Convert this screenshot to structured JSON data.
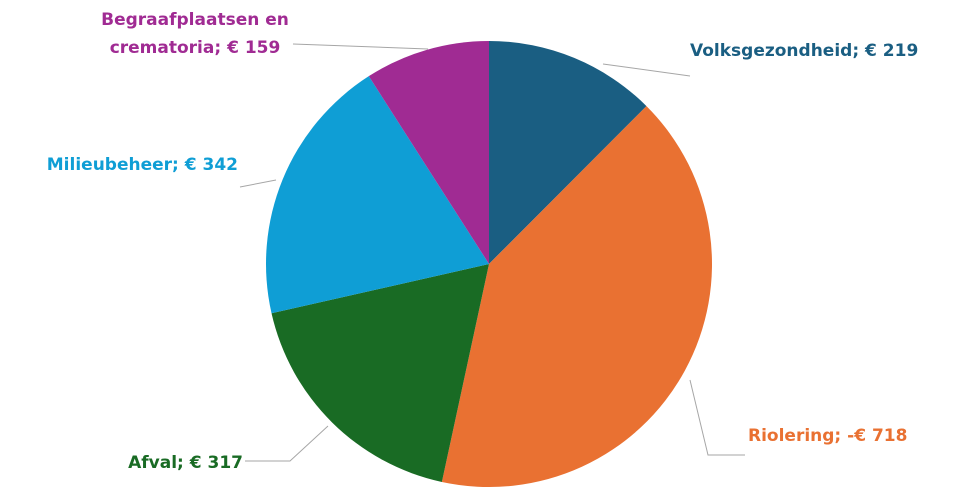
{
  "chart_data": {
    "type": "pie",
    "title": "",
    "series": [
      {
        "values": [
          219,
          718,
          317,
          342,
          159
        ]
      }
    ],
    "categories": [
      "Volksgezondheid",
      "Riolering",
      "Afval",
      "Milieubeheer",
      "Begraafplaatsen en crematoria"
    ],
    "slices": [
      {
        "name": "Volksgezondheid",
        "value": 219,
        "color": "#1a5e82",
        "label": [
          "Volksgezondheid; € 219"
        ]
      },
      {
        "name": "Riolering",
        "value": 718,
        "color": "#e97132",
        "label": [
          "Riolering; -€ 718"
        ]
      },
      {
        "name": "Afval",
        "value": 317,
        "color": "#196b24",
        "label": [
          "Afval; € 317"
        ]
      },
      {
        "name": "Milieubeheer",
        "value": 342,
        "color": "#0f9ed5",
        "label": [
          "Milieubeheer; € 342"
        ]
      },
      {
        "name": "Begraafplaatsen en crematoria",
        "value": 159,
        "color": "#a02b93",
        "label": [
          "Begraafplaatsen en",
          "crematoria; € 159"
        ]
      }
    ],
    "legend": "none",
    "label_style": "category; value with leader lines"
  }
}
